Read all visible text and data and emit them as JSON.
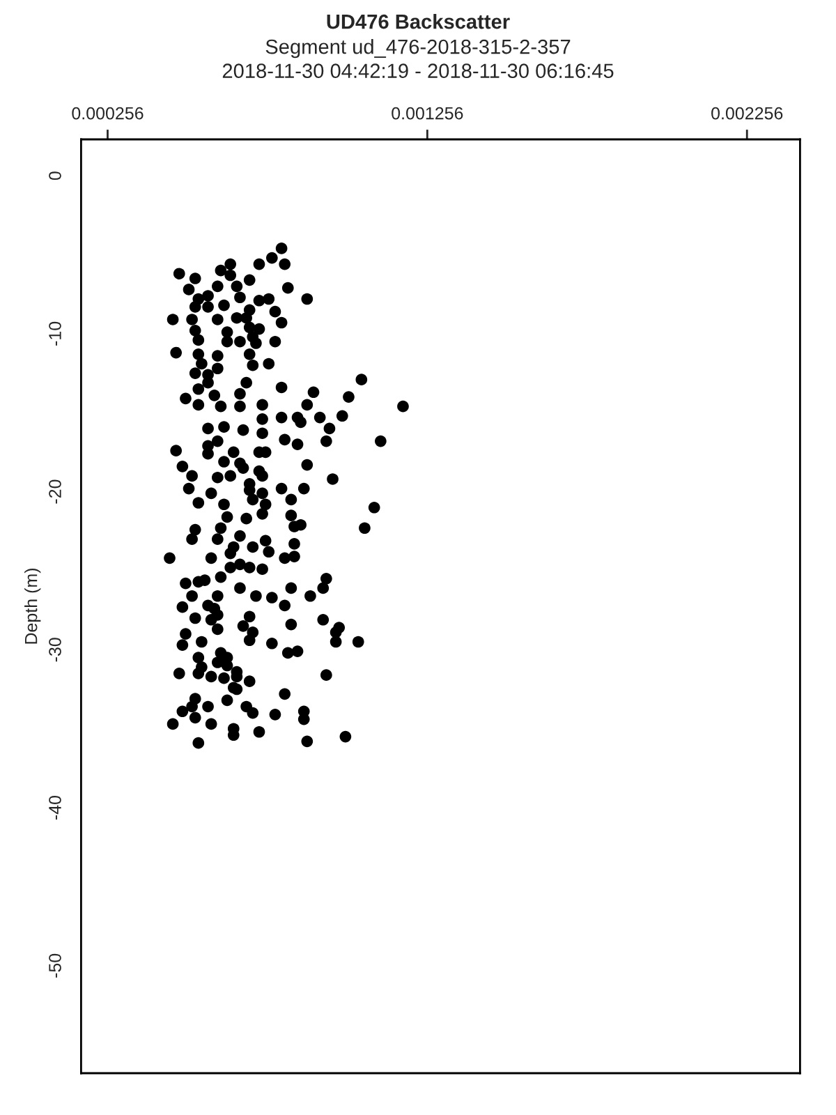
{
  "chart_data": {
    "type": "scatter",
    "title": "UD476 Backscatter",
    "subtitle": "Segment ud_476-2018-315-2-357\n2018-11-30 04:42:19 - 2018-11-30 06:16:45",
    "ylabel": "Depth (m)",
    "xlim": [
      0.000173,
      0.002422
    ],
    "ylim": [
      -56.8,
      2.3
    ],
    "xticks": [
      0.000256,
      0.001256,
      0.002256
    ],
    "yticks": [
      0,
      -10,
      -20,
      -30,
      -40,
      -50
    ],
    "grid": false,
    "marker": "circle",
    "legend": false,
    "series": [
      {
        "color": "#000000",
        "x": [
          0.0008,
          0.00077,
          0.00073,
          0.00081,
          0.00064,
          0.00061,
          0.00064,
          0.00048,
          0.00053,
          0.0007,
          0.0006,
          0.00066,
          0.00051,
          0.00082,
          0.00057,
          0.00067,
          0.00054,
          0.00088,
          0.00073,
          0.00076,
          0.00053,
          0.00057,
          0.00062,
          0.0007,
          0.00078,
          0.00046,
          0.00052,
          0.0006,
          0.00066,
          0.00069,
          0.0008,
          0.0007,
          0.00073,
          0.00053,
          0.00063,
          0.00071,
          0.00054,
          0.00063,
          0.00067,
          0.00072,
          0.00078,
          0.00047,
          0.00054,
          0.0006,
          0.0007,
          0.00055,
          0.00071,
          0.00076,
          0.0006,
          0.00053,
          0.00057,
          0.00105,
          0.00069,
          0.00057,
          0.0008,
          0.00054,
          0.0009,
          0.00067,
          0.0005,
          0.00059,
          0.00101,
          0.00054,
          0.00061,
          0.00067,
          0.00074,
          0.00088,
          0.00118,
          0.00074,
          0.0008,
          0.00085,
          0.00092,
          0.00099,
          0.00086,
          0.00057,
          0.00062,
          0.00068,
          0.00095,
          0.00074,
          0.0006,
          0.00081,
          0.00094,
          0.00085,
          0.00111,
          0.00057,
          0.00047,
          0.00057,
          0.00065,
          0.00073,
          0.00075,
          0.00062,
          0.00067,
          0.00088,
          0.00049,
          0.00068,
          0.00073,
          0.00052,
          0.0006,
          0.00064,
          0.00074,
          0.00096,
          0.0007,
          0.00051,
          0.0007,
          0.0008,
          0.00087,
          0.00058,
          0.00074,
          0.00071,
          0.00054,
          0.00062,
          0.00075,
          0.00083,
          0.00109,
          0.00063,
          0.00074,
          0.00069,
          0.00083,
          0.00053,
          0.00061,
          0.00106,
          0.00084,
          0.00086,
          0.00052,
          0.0006,
          0.00067,
          0.00075,
          0.00084,
          0.00065,
          0.00071,
          0.00064,
          0.00076,
          0.00045,
          0.00058,
          0.00081,
          0.00084,
          0.00067,
          0.00064,
          0.0007,
          0.00074,
          0.00061,
          0.00094,
          0.0005,
          0.00054,
          0.00056,
          0.00067,
          0.00083,
          0.00093,
          0.00052,
          0.0006,
          0.00072,
          0.00077,
          0.00089,
          0.00081,
          0.00049,
          0.00057,
          0.00059,
          0.00053,
          0.0006,
          0.0007,
          0.00058,
          0.00068,
          0.00083,
          0.00093,
          0.0006,
          0.00098,
          0.0005,
          0.00071,
          0.00097,
          0.00049,
          0.00055,
          0.0007,
          0.00077,
          0.00097,
          0.00104,
          0.00061,
          0.00082,
          0.00085,
          0.00054,
          0.00063,
          0.0006,
          0.00063,
          0.00054,
          0.00055,
          0.00066,
          0.00048,
          0.00058,
          0.00062,
          0.00066,
          0.00094,
          0.0007,
          0.00065,
          0.00066,
          0.00081,
          0.00063,
          0.00053,
          0.00052,
          0.00057,
          0.00049,
          0.00069,
          0.00087,
          0.00046,
          0.00053,
          0.00071,
          0.00078,
          0.00087,
          0.00058,
          0.00065,
          0.00073,
          0.00065,
          0.00054,
          0.00088,
          0.001
        ],
        "values": [
          -4.6,
          -5.2,
          -5.6,
          -5.6,
          -5.6,
          -6.0,
          -6.3,
          -6.2,
          -6.5,
          -6.6,
          -7.0,
          -7.0,
          -7.2,
          -7.1,
          -7.6,
          -7.7,
          -7.8,
          -7.8,
          -7.9,
          -7.8,
          -8.3,
          -8.3,
          -8.2,
          -8.5,
          -8.6,
          -9.1,
          -9.1,
          -9.1,
          -9.0,
          -9.0,
          -9.3,
          -9.6,
          -9.7,
          -9.8,
          -9.9,
          -10.2,
          -10.4,
          -10.5,
          -10.5,
          -10.6,
          -10.5,
          -11.2,
          -11.3,
          -11.4,
          -11.3,
          -11.9,
          -12.0,
          -11.9,
          -12.2,
          -12.5,
          -12.6,
          -12.9,
          -13.1,
          -13.1,
          -13.4,
          -13.5,
          -13.7,
          -13.8,
          -14.1,
          -13.9,
          -14.0,
          -14.5,
          -14.6,
          -14.6,
          -14.5,
          -14.5,
          -14.6,
          -15.4,
          -15.3,
          -15.3,
          -15.3,
          -15.2,
          -15.6,
          -16.0,
          -15.9,
          -16.1,
          -16.0,
          -16.3,
          -16.8,
          -16.7,
          -16.8,
          -17.0,
          -16.8,
          -17.1,
          -17.4,
          -17.6,
          -17.5,
          -17.5,
          -17.5,
          -18.1,
          -18.2,
          -18.3,
          -18.4,
          -18.5,
          -18.7,
          -19.0,
          -19.1,
          -19.0,
          -19.0,
          -19.2,
          -19.5,
          -19.8,
          -19.9,
          -19.8,
          -19.8,
          -20.1,
          -20.1,
          -20.5,
          -20.7,
          -20.8,
          -20.8,
          -20.5,
          -21.0,
          -21.6,
          -21.4,
          -21.7,
          -21.5,
          -22.4,
          -22.3,
          -22.3,
          -22.2,
          -22.1,
          -23.0,
          -23.0,
          -22.8,
          -23.1,
          -23.3,
          -23.5,
          -23.5,
          -23.9,
          -23.8,
          -24.2,
          -24.2,
          -24.2,
          -24.1,
          -24.6,
          -24.8,
          -24.8,
          -24.9,
          -25.4,
          -25.5,
          -25.8,
          -25.7,
          -25.6,
          -26.1,
          -26.1,
          -26.1,
          -26.6,
          -26.6,
          -26.6,
          -26.7,
          -26.6,
          -27.2,
          -27.3,
          -27.2,
          -27.4,
          -28.0,
          -27.8,
          -27.9,
          -28.1,
          -28.5,
          -28.4,
          -28.1,
          -28.7,
          -28.6,
          -29.0,
          -28.9,
          -28.9,
          -29.7,
          -29.5,
          -29.4,
          -29.6,
          -29.5,
          -29.5,
          -30.2,
          -30.2,
          -30.1,
          -30.5,
          -30.5,
          -30.8,
          -31.0,
          -31.5,
          -31.1,
          -31.4,
          -31.5,
          -31.7,
          -31.8,
          -31.7,
          -31.6,
          -32.0,
          -32.4,
          -32.5,
          -32.8,
          -33.2,
          -33.1,
          -33.6,
          -33.6,
          -33.9,
          -33.6,
          -33.9,
          -34.7,
          -34.3,
          -34.0,
          -34.1,
          -34.4,
          -34.7,
          -35.0,
          -35.2,
          -35.4,
          -35.9,
          -35.8,
          -35.5
        ]
      }
    ]
  }
}
